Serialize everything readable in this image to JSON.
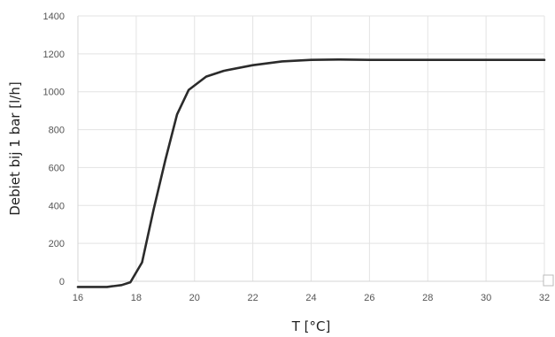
{
  "chart_data": {
    "type": "line",
    "title": "",
    "xlabel": "T [°C]",
    "ylabel": "Debiet bij 1 bar [l/h]",
    "xlim": [
      16,
      32
    ],
    "ylim": [
      0,
      1400
    ],
    "x_ticks": [
      16,
      18,
      20,
      22,
      24,
      26,
      28,
      30,
      32
    ],
    "y_ticks": [
      0,
      200,
      400,
      600,
      800,
      1000,
      1200,
      1400
    ],
    "grid": true,
    "legend": "none",
    "series": [
      {
        "color": "#2b2b2b",
        "points": [
          [
            16,
            -30
          ],
          [
            17,
            -30
          ],
          [
            17.5,
            -20
          ],
          [
            17.8,
            -5
          ],
          [
            18.2,
            100
          ],
          [
            18.6,
            380
          ],
          [
            19.0,
            640
          ],
          [
            19.4,
            880
          ],
          [
            19.8,
            1010
          ],
          [
            20.4,
            1080
          ],
          [
            21.0,
            1110
          ],
          [
            22.0,
            1140
          ],
          [
            23.0,
            1160
          ],
          [
            24.0,
            1168
          ],
          [
            25.0,
            1170
          ],
          [
            26.0,
            1168
          ],
          [
            28.0,
            1168
          ],
          [
            30.0,
            1168
          ],
          [
            32.0,
            1168
          ]
        ]
      }
    ]
  }
}
